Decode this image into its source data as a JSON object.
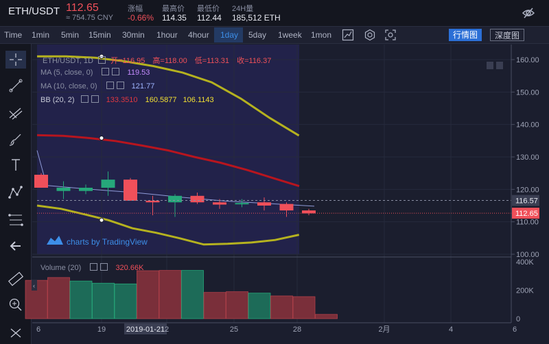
{
  "header": {
    "pair": "ETH/USDT",
    "price": "112.65",
    "cny": "≈ 754.75 CNY",
    "stats": [
      {
        "label": "涨幅",
        "value": "-0.66%"
      },
      {
        "label": "最高价",
        "value": "114.35"
      },
      {
        "label": "最低价",
        "value": "112.44"
      },
      {
        "label": "24H量",
        "value": "185,512 ETH"
      }
    ]
  },
  "toolbar": {
    "timeframes": [
      "Time",
      "1min",
      "5min",
      "15min",
      "30min",
      "1hour",
      "4hour",
      "1day",
      "5day",
      "1week",
      "1mon"
    ],
    "active": "1day",
    "market_btn": "行情图",
    "depth_btn": "深度图"
  },
  "legend": {
    "title": "ETH/USDT, 1D",
    "open_label": "开=",
    "open": "116.95",
    "high_label": "高=",
    "high": "118.00",
    "low_label": "低=",
    "low": "113.31",
    "close_label": "收=",
    "close": "116.37",
    "ma5_label": "MA (5, close, 0)",
    "ma5": "119.53",
    "ma10_label": "MA (10, close, 0)",
    "ma10": "121.77",
    "bb_label": "BB (20, 2)",
    "bb_mid": "133.3510",
    "bb_upper": "160.5877",
    "bb_lower": "106.1143",
    "volume_label": "Volume (20)",
    "volume_value": "320.66K"
  },
  "watermark": "charts by TradingView",
  "colors": {
    "up": "#26a87a",
    "down": "#f0505a",
    "bb_band": "#b5b21f",
    "bb_mid": "#b8151e",
    "accent": "#3d8ee8"
  },
  "chart_data": {
    "type": "candlestick",
    "price_ticks": [
      "160.00",
      "150.00",
      "140.00",
      "130.00",
      "120.00",
      "110.00",
      "100.00"
    ],
    "volume_ticks": [
      "400K",
      "200K",
      "0"
    ],
    "x_ticks": [
      "6",
      "19",
      "2019-01-21",
      "2",
      "25",
      "28",
      "2月",
      "4",
      "6"
    ],
    "last_price_label": "112.65",
    "crosshair_price_label": "116.57",
    "ylim": [
      100,
      162
    ],
    "candles": [
      {
        "o": 124.5,
        "h": 125.0,
        "l": 120.5,
        "c": 120.5
      },
      {
        "o": 119.5,
        "h": 122.5,
        "l": 117.0,
        "c": 120.5
      },
      {
        "o": 119.5,
        "h": 121.5,
        "l": 118.5,
        "c": 120.5
      },
      {
        "o": 120.5,
        "h": 125.5,
        "l": 118.0,
        "c": 123.0
      },
      {
        "o": 123.0,
        "h": 123.5,
        "l": 116.5,
        "c": 116.5
      },
      {
        "o": 116.5,
        "h": 118.0,
        "l": 112.0,
        "c": 116.0
      },
      {
        "o": 116.0,
        "h": 118.5,
        "l": 111.5,
        "c": 118.0
      },
      {
        "o": 118.0,
        "h": 119.0,
        "l": 115.5,
        "c": 116.0
      },
      {
        "o": 116.0,
        "h": 117.0,
        "l": 114.0,
        "c": 115.3
      },
      {
        "o": 115.5,
        "h": 117.0,
        "l": 114.5,
        "c": 115.8
      },
      {
        "o": 116.0,
        "h": 117.5,
        "l": 113.5,
        "c": 115.0
      },
      {
        "o": 115.5,
        "h": 116.0,
        "l": 111.5,
        "c": 113.5
      },
      {
        "o": 113.5,
        "h": 114.0,
        "l": 112.0,
        "c": 112.6
      }
    ],
    "ma_line": [
      121.2,
      120.6,
      120.0,
      119.5,
      119.0,
      118.3,
      117.6,
      117.0,
      116.4,
      116.0,
      115.6,
      115.2,
      114.8
    ],
    "ma_line_start": 132.0,
    "bb_upper": [
      161.0,
      161.0,
      160.6,
      159.5,
      158.0,
      156.0,
      153.0,
      148.0,
      142.0,
      136.6
    ],
    "bb_mid": [
      136.7,
      136.5,
      135.8,
      134.9,
      133.5,
      132.0,
      130.0,
      128.2,
      126.0,
      123.5,
      121.0
    ],
    "bb_lower": [
      115.0,
      114.0,
      112.3,
      110.5,
      108.0,
      106.6,
      104.9,
      103.0,
      103.2,
      103.6,
      104.4,
      106.0
    ],
    "volume_k": [
      290,
      265,
      250,
      245,
      338,
      340,
      340,
      185,
      190,
      180,
      160,
      155,
      30
    ],
    "volume_k_first": 270
  }
}
